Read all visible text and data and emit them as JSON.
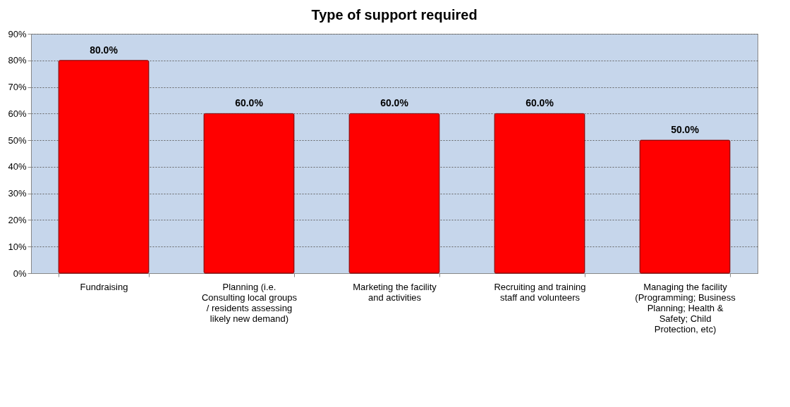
{
  "chart_data": {
    "type": "bar",
    "title": "Type of support required",
    "categories": [
      "Fundraising",
      "Planning (i.e. Consulting local groups / residents assessing likely new demand)",
      "Marketing the facility and activities",
      "Recruiting and training staff and volunteers",
      "Managing the facility (Programming; Business Planning; Health & Safety; Child Protection, etc)"
    ],
    "values": [
      80,
      60,
      60,
      60,
      50
    ],
    "value_labels": [
      "80.0%",
      "60.0%",
      "60.0%",
      "60.0%",
      "50.0%"
    ],
    "color": "#ff0000",
    "ylim": [
      0,
      90
    ],
    "yticks": [
      {
        "value": 0,
        "label": "0%"
      },
      {
        "value": 10,
        "label": "10%"
      },
      {
        "value": 20,
        "label": "20%"
      },
      {
        "value": 30,
        "label": "30%"
      },
      {
        "value": 40,
        "label": "40%"
      },
      {
        "value": 50,
        "label": "50%"
      },
      {
        "value": 60,
        "label": "60%"
      },
      {
        "value": 70,
        "label": "70%"
      },
      {
        "value": 80,
        "label": "80%"
      },
      {
        "value": 90,
        "label": "90%"
      }
    ],
    "grid": "y"
  }
}
